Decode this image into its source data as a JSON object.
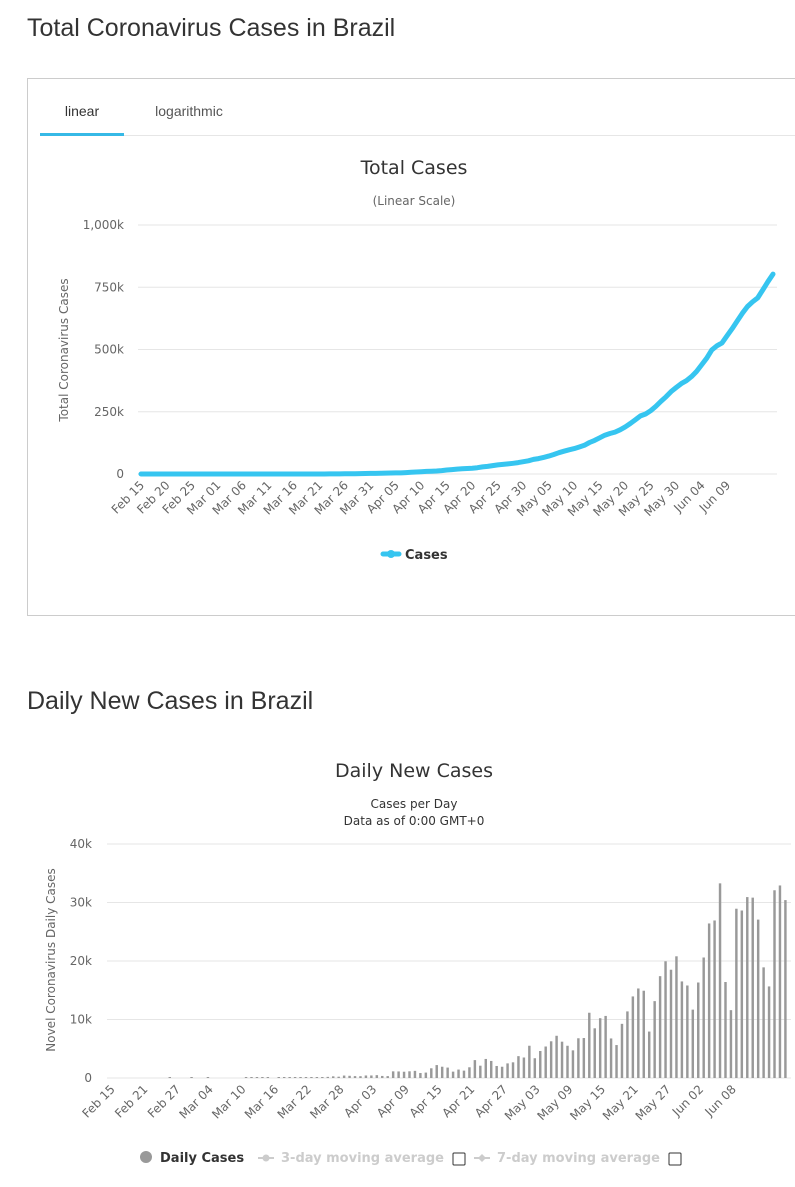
{
  "page": {
    "section1_title": "Total Coronavirus Cases in Brazil",
    "section2_title": "Daily New Cases in Brazil"
  },
  "tabs": {
    "linear": "linear",
    "logarithmic": "logarithmic",
    "active": "linear"
  },
  "chart_data": [
    {
      "type": "line",
      "title": "Total Cases",
      "subtitle": "(Linear Scale)",
      "xlabel": "",
      "ylabel": "Total Coronavirus Cases",
      "ylim": [
        0,
        1000000
      ],
      "yticks": [
        "0",
        "250k",
        "500k",
        "750k",
        "1,000k"
      ],
      "xticks": [
        "Feb 15",
        "Feb 20",
        "Feb 25",
        "Mar 01",
        "Mar 06",
        "Mar 11",
        "Mar 16",
        "Mar 21",
        "Mar 26",
        "Mar 31",
        "Apr 05",
        "Apr 10",
        "Apr 15",
        "Apr 20",
        "Apr 25",
        "Apr 30",
        "May 05",
        "May 10",
        "May 15",
        "May 20",
        "May 25",
        "May 30",
        "Jun 04",
        "Jun 09"
      ],
      "x_start": "Feb 15",
      "x_end": "Jun 12",
      "color": "#36c5f0",
      "legend_position": "bottom-center",
      "grid": true,
      "series": [
        {
          "name": "Cases",
          "values": [
            0,
            0,
            0,
            0,
            0,
            0,
            0,
            0,
            0,
            0,
            0,
            0,
            0,
            0,
            0,
            1,
            1,
            1,
            2,
            2,
            2,
            2,
            2,
            2,
            2,
            3,
            8,
            13,
            19,
            25,
            25,
            34,
            52,
            77,
            98,
            121,
            200,
            234,
            291,
            428,
            621,
            904,
            1128,
            1546,
            1924,
            2247,
            2554,
            2985,
            3417,
            3904,
            4256,
            4579,
            5717,
            6836,
            7910,
            9056,
            10278,
            11130,
            12056,
            13717,
            15927,
            17857,
            19638,
            20727,
            22169,
            23430,
            25262,
            28320,
            30425,
            33682,
            36599,
            38654,
            40581,
            43079,
            45757,
            49492,
            52995,
            58509,
            61888,
            66501,
            71886,
            78162,
            85380,
            91589,
            97100,
            101826,
            108620,
            115455,
            126611,
            135106,
            145328,
            155939,
            162699,
            168331,
            177589,
            188974,
            202918,
            218223,
            233142,
            241080,
            254220,
            271628,
            291579,
            310087,
            330890,
            347398,
            363211,
            374898,
            391222,
            411821,
            438238,
            465166,
            498440,
            514849,
            526447,
            555383,
            584016,
            614941,
            645771,
            672846,
            691758,
            707412,
            739503,
            772416,
            802828
          ]
        }
      ]
    },
    {
      "type": "bar",
      "title": "Daily New Cases",
      "subtitle": "Cases per Day",
      "subtitle2": "Data as of 0:00 GMT+0",
      "xlabel": "",
      "ylabel": "Novel Coronavirus Daily Cases",
      "ylim": [
        0,
        40000
      ],
      "yticks": [
        "0",
        "10k",
        "20k",
        "30k",
        "40k"
      ],
      "xticks": [
        "Feb 15",
        "Feb 21",
        "Feb 27",
        "Mar 04",
        "Mar 10",
        "Mar 16",
        "Mar 22",
        "Mar 28",
        "Apr 03",
        "Apr 09",
        "Apr 15",
        "Apr 21",
        "Apr 27",
        "May 03",
        "May 09",
        "May 15",
        "May 21",
        "May 27",
        "Jun 02",
        "Jun 08"
      ],
      "x_start": "Feb 15",
      "x_end": "Jun 12",
      "color": "#999999",
      "legend_position": "bottom-center",
      "grid": true,
      "legend": [
        "Daily Cases",
        "3-day moving average",
        "7-day moving average"
      ],
      "series": [
        {
          "name": "Daily Cases",
          "values": [
            0,
            0,
            0,
            0,
            0,
            0,
            0,
            0,
            0,
            0,
            0,
            1,
            0,
            0,
            0,
            1,
            0,
            0,
            1,
            0,
            0,
            0,
            0,
            0,
            0,
            1,
            5,
            5,
            6,
            6,
            0,
            9,
            18,
            25,
            21,
            23,
            79,
            34,
            57,
            137,
            193,
            283,
            224,
            418,
            378,
            323,
            307,
            431,
            432,
            487,
            352,
            323,
            1138,
            1119,
            1074,
            1146,
            1222,
            852,
            926,
            1661,
            2210,
            1930,
            1781,
            1089,
            1442,
            1261,
            1832,
            3058,
            2105,
            3257,
            2917,
            2055,
            1927,
            2498,
            2678,
            3735,
            3503,
            5514,
            3379,
            4613,
            5385,
            6276,
            7218,
            6209,
            5511,
            4726,
            6794,
            6835,
            11156,
            8495,
            10222,
            10611,
            6760,
            5632,
            9258,
            11385,
            13944,
            15305,
            14919,
            7938,
            13140,
            17408,
            19951,
            18508,
            20803,
            16508,
            15813,
            11687,
            16324,
            20599,
            26417,
            26928,
            33274,
            16409,
            11598,
            28936,
            28633,
            30925,
            30830,
            27075,
            18912,
            15654,
            32091,
            32913,
            30412
          ]
        }
      ]
    }
  ]
}
